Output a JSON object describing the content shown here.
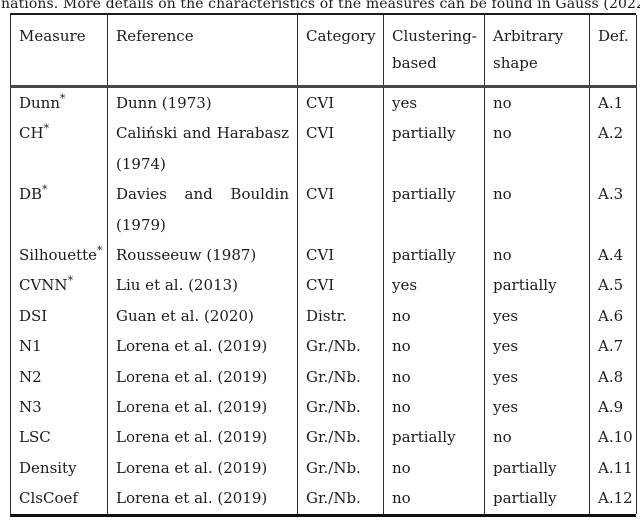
{
  "caption": "nations. More details on the characteristics of the measures can be found in Gauss (2022).",
  "table": {
    "headers": [
      {
        "id": "measure",
        "lines": [
          "Measure"
        ]
      },
      {
        "id": "reference",
        "lines": [
          "Reference"
        ]
      },
      {
        "id": "category",
        "lines": [
          "Category"
        ]
      },
      {
        "id": "clustering-based",
        "lines": [
          "Clustering-",
          "based"
        ]
      },
      {
        "id": "arbitrary-shape",
        "lines": [
          "Arbitrary",
          "shape"
        ]
      },
      {
        "id": "def",
        "lines": [
          "Def."
        ]
      }
    ],
    "star_glyph": "*",
    "rows": [
      {
        "measure": "Dunn",
        "star": true,
        "reference": "Dunn (1973)",
        "category": "CVI",
        "clustering_based": "yes",
        "arbitrary_shape": "no",
        "def": "A.1"
      },
      {
        "measure": "CH",
        "star": true,
        "reference": "Caliński and Harabasz (1974)",
        "category": "CVI",
        "clustering_based": "partially",
        "arbitrary_shape": "no",
        "def": "A.2"
      },
      {
        "measure": "DB",
        "star": true,
        "reference": "Davies and Bouldin (1979)",
        "category": "CVI",
        "clustering_based": "partially",
        "arbitrary_shape": "no",
        "def": "A.3"
      },
      {
        "measure": "Silhouette",
        "star": true,
        "reference": "Rousseeuw (1987)",
        "category": "CVI",
        "clustering_based": "partially",
        "arbitrary_shape": "no",
        "def": "A.4"
      },
      {
        "measure": "CVNN",
        "star": true,
        "reference": "Liu et al. (2013)",
        "category": "CVI",
        "clustering_based": "yes",
        "arbitrary_shape": "partially",
        "def": "A.5"
      },
      {
        "measure": "DSI",
        "star": false,
        "reference": "Guan et al. (2020)",
        "category": "Distr.",
        "clustering_based": "no",
        "arbitrary_shape": "yes",
        "def": "A.6"
      },
      {
        "measure": "N1",
        "star": false,
        "reference": "Lorena et al. (2019)",
        "category": "Gr./Nb.",
        "clustering_based": "no",
        "arbitrary_shape": "yes",
        "def": "A.7"
      },
      {
        "measure": "N2",
        "star": false,
        "reference": "Lorena et al. (2019)",
        "category": "Gr./Nb.",
        "clustering_based": "no",
        "arbitrary_shape": "yes",
        "def": "A.8"
      },
      {
        "measure": "N3",
        "star": false,
        "reference": "Lorena et al. (2019)",
        "category": "Gr./Nb.",
        "clustering_based": "no",
        "arbitrary_shape": "yes",
        "def": "A.9"
      },
      {
        "measure": "LSC",
        "star": false,
        "reference": "Lorena et al. (2019)",
        "category": "Gr./Nb.",
        "clustering_based": "partially",
        "arbitrary_shape": "no",
        "def": "A.10"
      },
      {
        "measure": "Density",
        "star": false,
        "reference": "Lorena et al. (2019)",
        "category": "Gr./Nb.",
        "clustering_based": "no",
        "arbitrary_shape": "partially",
        "def": "A.11"
      },
      {
        "measure": "ClsCoef",
        "star": false,
        "reference": "Lorena et al. (2019)",
        "category": "Gr./Nb.",
        "clustering_based": "no",
        "arbitrary_shape": "partially",
        "def": "A.12"
      }
    ]
  }
}
